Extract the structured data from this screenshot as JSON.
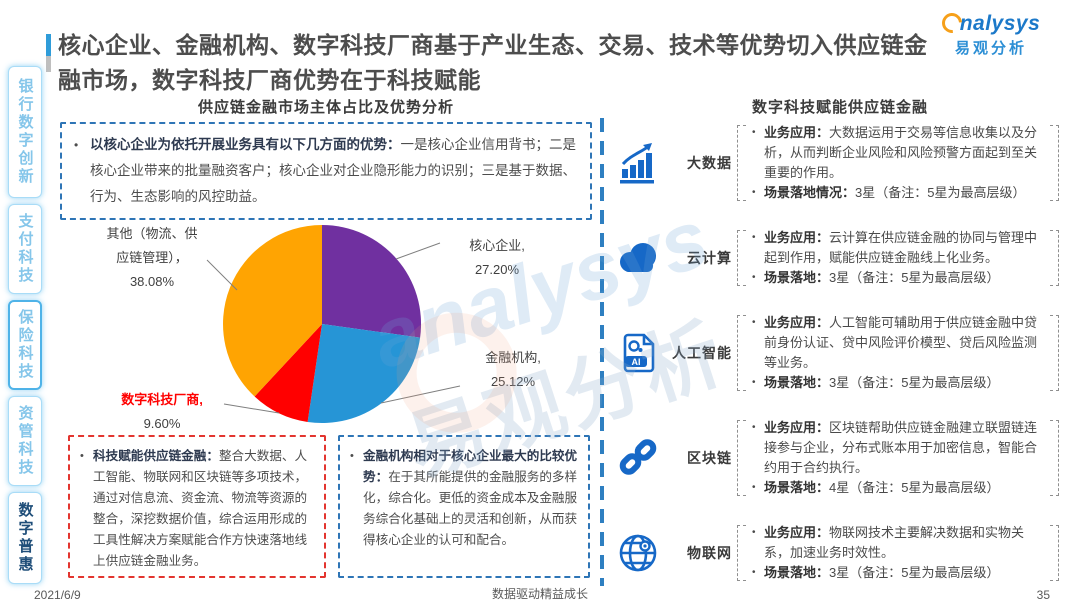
{
  "title": "核心企业、金融机构、数字科技厂商基于产业生态、交易、技术等优势切入供应链金融市场，数字科技厂商优势在于科技赋能",
  "logo": {
    "brand_en": "nalysys",
    "brand_cn": "易观分析"
  },
  "watermark": {
    "en": "analysys",
    "cn": "易观分析"
  },
  "sidebar": {
    "items": [
      {
        "label": "银行数字创新",
        "active": false
      },
      {
        "label": "支付科技",
        "active": false
      },
      {
        "label": "保险科技",
        "active": false
      },
      {
        "label": "资管科技",
        "active": false
      },
      {
        "label": "数字普惠",
        "active": true
      }
    ]
  },
  "left": {
    "section_title": "供应链金融市场主体占比及优势分析",
    "top_note": {
      "bullet": "•",
      "lead": "以核心企业为依托开展业务具有以下几方面的优势：",
      "body": "一是核心企业信用背书；二是核心企业带来的批量融资客户；核心企业对企业隐形能力的识别；三是基于数据、行为、生态影响的风控助益。"
    },
    "bottom_notes": [
      {
        "style": "red",
        "bullet": "•",
        "lead": "科技赋能供应链金融：",
        "body": "整合大数据、人工智能、物联网和区块链等多项技术，通过对信息流、资金流、物流等资源的整合，深挖数据价值，综合运用形成的工具性解决方案赋能合作方快速落地线上供应链金融业务。"
      },
      {
        "style": "blue",
        "bullet": "•",
        "lead": "金融机构相对于核心企业最大的比较优势：",
        "body": "在于其所能提供的金融服务的多样化，综合化。更低的资金成本及金融服务综合化基础上的灵活和创新，从而获得核心企业的认可和配合。"
      }
    ]
  },
  "chart_data": {
    "type": "pie",
    "title": "供应链金融市场主体占比及优势分析",
    "unit": "%",
    "start_angle_deg": 0,
    "direction": "clockwise",
    "legend": "none",
    "data_labels": "outside with leader lines",
    "slices": [
      {
        "label": "核心企业",
        "value": 27.2,
        "label_display": "核心企业,",
        "pct_display": "27.20%",
        "color": "#7030A0"
      },
      {
        "label": "金融机构",
        "value": 25.12,
        "label_display": "金融机构,",
        "pct_display": "25.12%",
        "color": "#2695D6"
      },
      {
        "label": "数字科技厂商",
        "value": 9.6,
        "label_display": "数字科技厂商,",
        "pct_display": "9.60%",
        "color": "#FF0000",
        "highlight": true
      },
      {
        "label": "其他（物流、供应链管理）",
        "value": 38.08,
        "label_line1": "其他（物流、供",
        "label_line2": "应链管理），",
        "pct_display": "38.08%",
        "color": "#FFA402"
      }
    ]
  },
  "right": {
    "section_title": "数字科技赋能供应链金融",
    "rows": [
      {
        "icon": "big-data",
        "label": "大数据",
        "stars": 3,
        "b1_lead": "业务应用：",
        "b1_body": "大数据运用于交易等信息收集以及分析，从而判断企业风险和风险预警方面起到至关重要的作用。",
        "b2_lead": "场景落地情况：",
        "b2_body": "3星（备注：5星为最高层级）"
      },
      {
        "icon": "cloud",
        "label": "云计算",
        "stars": 3,
        "b1_lead": "业务应用：",
        "b1_body": "云计算在供应链金融的协同与管理中起到作用，赋能供应链金融线上化业务。",
        "b2_lead": "场景落地：",
        "b2_body": "3星（备注：5星为最高层级）"
      },
      {
        "icon": "ai",
        "label": "人工智能",
        "stars": 3,
        "b1_lead": "业务应用：",
        "b1_body": "人工智能可辅助用于供应链金融中贷前身份认证、贷中风险评价模型、贷后风险监测等业务。",
        "b2_lead": "场景落地：",
        "b2_body": "3星（备注：5星为最高层级）"
      },
      {
        "icon": "blockchain",
        "label": "区块链",
        "stars": 4,
        "b1_lead": "业务应用：",
        "b1_body": "区块链帮助供应链金融建立联盟链连接参与企业，分布式账本用于加密信息，智能合约用于合约执行。",
        "b2_lead": "场景落地：",
        "b2_body": "4星（备注：5星为最高层级）"
      },
      {
        "icon": "iot",
        "label": "物联网",
        "stars": 3,
        "b1_lead": "业务应用：",
        "b1_body": "物联网技术主要解决数据和实物关系，加速业务时效性。",
        "b2_lead": "场景落地：",
        "b2_body": "3星（备注：5星为最高层级）"
      }
    ]
  },
  "footer": {
    "date": "2021/6/9",
    "slogan": "数据驱动精益成长",
    "page": "35"
  },
  "colors": {
    "icon_blue": "#1668C7",
    "divider_blue": "#2E7FC1",
    "box_blue": "#2E75B6",
    "box_red": "#E3352F",
    "accent_blue": "#2F9CD9",
    "tab_border": "#A9DCF7",
    "highlight_red": "#FF0000",
    "title_gray": "#4D4D4D"
  }
}
